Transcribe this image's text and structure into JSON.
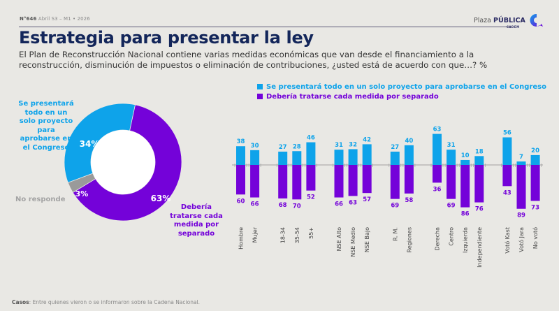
{
  "header": {
    "issue_number": "N°646",
    "issue_date": "Abril S3 – M1 • 2026",
    "brand_name_light": "Plaza",
    "brand_name_bold": "PÚBLICA",
    "brand_sub": "CADEM",
    "title": "Estrategia para presentar la ley",
    "subtitle": "El Plan de Reconstrucción Nacional contiene varias medidas económicas que van desde el financiamiento a la reconstrucción, disminución de impuestos o eliminación de contribuciones, ¿usted está de acuerdo con que…? %"
  },
  "colors": {
    "blue": "#0ea3ea",
    "purple": "#7402d9",
    "gray": "#9a9a9a",
    "navy": "#13265a"
  },
  "footer": {
    "label": "Casos",
    "text": ": Entre quienes vieron o se informaron sobre la Cadena Nacional."
  },
  "chart_data": [
    {
      "type": "pie",
      "variant": "donut",
      "slices": [
        {
          "name": "Se presentará todo en un solo proyecto para aprobarse en el Congreso",
          "value": 34,
          "label": "34%",
          "color": "#0ea3ea"
        },
        {
          "name": "Debería tratarse cada medida por separado",
          "value": 63,
          "label": "63%",
          "color": "#7402d9"
        },
        {
          "name": "No responde",
          "value": 3,
          "label": "3%",
          "color": "#9a9a9a"
        }
      ],
      "outer_labels": {
        "blue": "Se presentará todo en un solo proyecto para aprobarse en el Congreso",
        "purple": "Debería tratarse cada medida por separado",
        "gray": "No responde"
      }
    },
    {
      "type": "bar",
      "orientation": "diverging",
      "legend": [
        "Se presentará todo en un solo proyecto para aprobarse en el Congreso",
        "Debería tratarse cada medida por separado"
      ],
      "legend_position": "top-left",
      "groups": [
        {
          "categories": [
            "Hombre",
            "Mujer"
          ]
        },
        {
          "categories": [
            "18-34",
            "35-54",
            "55+"
          ]
        },
        {
          "categories": [
            "NSE Alto",
            "NSE Medio",
            "NSE Bajo"
          ]
        },
        {
          "categories": [
            "R. M.",
            "Regiones"
          ]
        },
        {
          "categories": [
            "Derecha",
            "Centro",
            "Izquierda",
            "Independiente"
          ]
        },
        {
          "categories": [
            "Votó Kast",
            "Votó Jara",
            "No votó"
          ]
        }
      ],
      "categories": [
        "Hombre",
        "Mujer",
        "18-34",
        "35-54",
        "55+",
        "NSE Alto",
        "NSE Medio",
        "NSE Bajo",
        "R. M.",
        "Regiones",
        "Derecha",
        "Centro",
        "Izquierda",
        "Independiente",
        "Votó Kast",
        "Votó Jara",
        "No votó"
      ],
      "series": [
        {
          "name": "Se presentará todo en un solo proyecto para aprobarse en el Congreso",
          "color": "#0ea3ea",
          "direction": "up",
          "values": [
            38,
            30,
            27,
            28,
            46,
            31,
            32,
            42,
            27,
            40,
            63,
            31,
            10,
            18,
            56,
            7,
            20
          ]
        },
        {
          "name": "Debería tratarse cada medida por separado",
          "color": "#7402d9",
          "direction": "down",
          "values": [
            60,
            66,
            68,
            70,
            52,
            66,
            63,
            57,
            69,
            58,
            36,
            69,
            86,
            76,
            43,
            89,
            73
          ]
        }
      ]
    }
  ]
}
